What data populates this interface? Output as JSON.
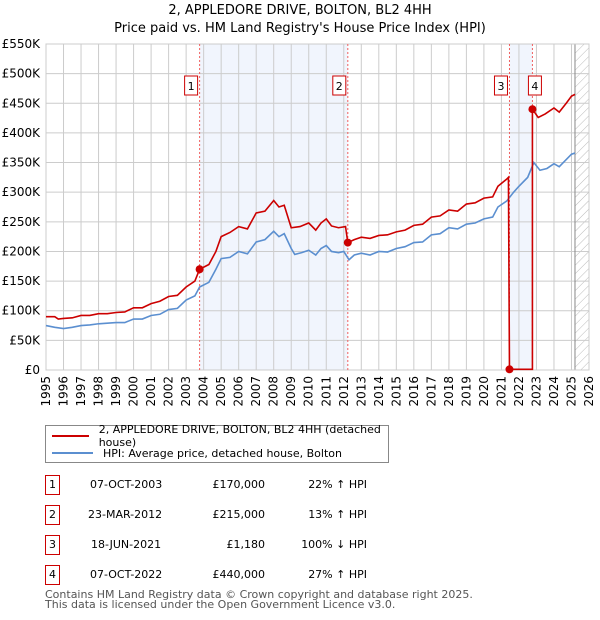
{
  "chart_data": {
    "type": "line",
    "title": "2, APPLEDORE DRIVE, BOLTON, BL2 4HH",
    "subtitle": "Price paid vs. HM Land Registry's House Price Index (HPI)",
    "xlim": [
      1995,
      2026
    ],
    "ylim": [
      0,
      550000
    ],
    "yticks": [
      0,
      50000,
      100000,
      150000,
      200000,
      250000,
      300000,
      350000,
      400000,
      450000,
      500000,
      550000
    ],
    "ytick_labels": [
      "£0",
      "£50K",
      "£100K",
      "£150K",
      "£200K",
      "£250K",
      "£300K",
      "£350K",
      "£400K",
      "£450K",
      "£500K",
      "£550K"
    ],
    "xticks": [
      "1995",
      "1996",
      "1997",
      "1998",
      "1999",
      "2000",
      "2001",
      "2002",
      "2003",
      "2004",
      "2005",
      "2006",
      "2007",
      "2008",
      "2009",
      "2010",
      "2011",
      "2012",
      "2013",
      "2014",
      "2015",
      "2016",
      "2017",
      "2018",
      "2019",
      "2020",
      "2021",
      "2022",
      "2023",
      "2024",
      "2025",
      "2026"
    ],
    "grid": true,
    "shaded_ranges": [
      [
        2003.77,
        2012.23
      ],
      [
        2021.46,
        2022.77
      ]
    ],
    "forecast_from": 2025.2,
    "series": [
      {
        "name": "2, APPLEDORE DRIVE, BOLTON, BL2 4HH (detached house)",
        "color": "#cc0000",
        "points": [
          [
            1995,
            90000
          ],
          [
            1995.5,
            90000
          ],
          [
            1995.7,
            86000
          ],
          [
            1996,
            87000
          ],
          [
            1996.5,
            88000
          ],
          [
            1997,
            92000
          ],
          [
            1997.5,
            92000
          ],
          [
            1998,
            95000
          ],
          [
            1998.5,
            95000
          ],
          [
            1999,
            97000
          ],
          [
            1999.5,
            98000
          ],
          [
            2000,
            105000
          ],
          [
            2000.5,
            105000
          ],
          [
            2001,
            112000
          ],
          [
            2001.5,
            116000
          ],
          [
            2002,
            124000
          ],
          [
            2002.5,
            126000
          ],
          [
            2003,
            140000
          ],
          [
            2003.5,
            150000
          ],
          [
            2003.77,
            170000
          ],
          [
            2004.3,
            178000
          ],
          [
            2004.7,
            200000
          ],
          [
            2005,
            225000
          ],
          [
            2005.5,
            232000
          ],
          [
            2006,
            242000
          ],
          [
            2006.5,
            238000
          ],
          [
            2007,
            265000
          ],
          [
            2007.5,
            268000
          ],
          [
            2008,
            286000
          ],
          [
            2008.3,
            275000
          ],
          [
            2008.6,
            278000
          ],
          [
            2009,
            240000
          ],
          [
            2009.5,
            242000
          ],
          [
            2010,
            248000
          ],
          [
            2010.4,
            236000
          ],
          [
            2010.7,
            248000
          ],
          [
            2011,
            255000
          ],
          [
            2011.3,
            243000
          ],
          [
            2011.7,
            240000
          ],
          [
            2012.1,
            242000
          ],
          [
            2012.23,
            215000
          ],
          [
            2012.6,
            220000
          ],
          [
            2013,
            224000
          ],
          [
            2013.5,
            222000
          ],
          [
            2014,
            227000
          ],
          [
            2014.5,
            228000
          ],
          [
            2015,
            233000
          ],
          [
            2015.5,
            236000
          ],
          [
            2016,
            244000
          ],
          [
            2016.5,
            246000
          ],
          [
            2017,
            258000
          ],
          [
            2017.5,
            260000
          ],
          [
            2018,
            270000
          ],
          [
            2018.5,
            268000
          ],
          [
            2019,
            280000
          ],
          [
            2019.5,
            282000
          ],
          [
            2020,
            290000
          ],
          [
            2020.5,
            292000
          ],
          [
            2020.8,
            310000
          ],
          [
            2021.3,
            322000
          ],
          [
            2021.4,
            325000
          ],
          [
            2021.46,
            1180
          ],
          [
            2022.77,
            1180
          ],
          [
            2022.77,
            440000
          ],
          [
            2023.1,
            426000
          ],
          [
            2023.5,
            432000
          ],
          [
            2024,
            442000
          ],
          [
            2024.3,
            435000
          ],
          [
            2024.7,
            450000
          ],
          [
            2025,
            462000
          ],
          [
            2025.2,
            465000
          ]
        ],
        "sales": [
          [
            2003.77,
            170000
          ],
          [
            2012.23,
            215000
          ],
          [
            2021.46,
            1180
          ],
          [
            2022.77,
            440000
          ]
        ]
      },
      {
        "name": "HPI: Average price, detached house, Bolton",
        "color": "#5b8fd0",
        "points": [
          [
            1995,
            75000
          ],
          [
            1995.5,
            72000
          ],
          [
            1996,
            70000
          ],
          [
            1996.5,
            72000
          ],
          [
            1997,
            75000
          ],
          [
            1997.5,
            76000
          ],
          [
            1998,
            78000
          ],
          [
            1998.5,
            79000
          ],
          [
            1999,
            80000
          ],
          [
            1999.5,
            80000
          ],
          [
            2000,
            86000
          ],
          [
            2000.5,
            86000
          ],
          [
            2001,
            92000
          ],
          [
            2001.5,
            94000
          ],
          [
            2002,
            102000
          ],
          [
            2002.5,
            104000
          ],
          [
            2003,
            118000
          ],
          [
            2003.5,
            125000
          ],
          [
            2003.77,
            140000
          ],
          [
            2004.3,
            148000
          ],
          [
            2004.7,
            170000
          ],
          [
            2005,
            188000
          ],
          [
            2005.5,
            190000
          ],
          [
            2006,
            200000
          ],
          [
            2006.5,
            196000
          ],
          [
            2007,
            216000
          ],
          [
            2007.5,
            220000
          ],
          [
            2008,
            234000
          ],
          [
            2008.3,
            225000
          ],
          [
            2008.6,
            230000
          ],
          [
            2009,
            205000
          ],
          [
            2009.2,
            195000
          ],
          [
            2009.6,
            198000
          ],
          [
            2010,
            202000
          ],
          [
            2010.4,
            194000
          ],
          [
            2010.7,
            205000
          ],
          [
            2011,
            210000
          ],
          [
            2011.3,
            200000
          ],
          [
            2011.7,
            198000
          ],
          [
            2012,
            200000
          ],
          [
            2012.3,
            186000
          ],
          [
            2012.6,
            194000
          ],
          [
            2013,
            197000
          ],
          [
            2013.5,
            194000
          ],
          [
            2014,
            200000
          ],
          [
            2014.5,
            199000
          ],
          [
            2015,
            205000
          ],
          [
            2015.5,
            208000
          ],
          [
            2016,
            215000
          ],
          [
            2016.5,
            216000
          ],
          [
            2017,
            228000
          ],
          [
            2017.5,
            230000
          ],
          [
            2018,
            240000
          ],
          [
            2018.5,
            238000
          ],
          [
            2019,
            246000
          ],
          [
            2019.5,
            248000
          ],
          [
            2020,
            255000
          ],
          [
            2020.5,
            258000
          ],
          [
            2020.8,
            275000
          ],
          [
            2021.3,
            285000
          ],
          [
            2021.7,
            300000
          ],
          [
            2022,
            310000
          ],
          [
            2022.5,
            325000
          ],
          [
            2022.85,
            350000
          ],
          [
            2023.2,
            337000
          ],
          [
            2023.6,
            340000
          ],
          [
            2024,
            348000
          ],
          [
            2024.3,
            343000
          ],
          [
            2024.7,
            355000
          ],
          [
            2025,
            364000
          ],
          [
            2025.2,
            366000
          ]
        ]
      }
    ],
    "markers": [
      {
        "label": "1",
        "x": 2003.77
      },
      {
        "label": "2",
        "x": 2012.23
      },
      {
        "label": "3",
        "x": 2021.46
      },
      {
        "label": "4",
        "x": 2022.77
      }
    ]
  },
  "legend": {
    "items": [
      "2, APPLEDORE DRIVE, BOLTON, BL2 4HH (detached house)",
      "HPI: Average price, detached house, Bolton"
    ]
  },
  "table": [
    {
      "num": "1",
      "date": "07-OCT-2003",
      "price": "£170,000",
      "hpi": "22% ↑ HPI"
    },
    {
      "num": "2",
      "date": "23-MAR-2012",
      "price": "£215,000",
      "hpi": "13% ↑ HPI"
    },
    {
      "num": "3",
      "date": "18-JUN-2021",
      "price": "£1,180",
      "hpi": "100% ↓ HPI"
    },
    {
      "num": "4",
      "date": "07-OCT-2022",
      "price": "£440,000",
      "hpi": "27% ↑ HPI"
    }
  ],
  "footer": {
    "line1": "Contains HM Land Registry data © Crown copyright and database right 2025.",
    "line2": "This data is licensed under the Open Government Licence v3.0."
  }
}
